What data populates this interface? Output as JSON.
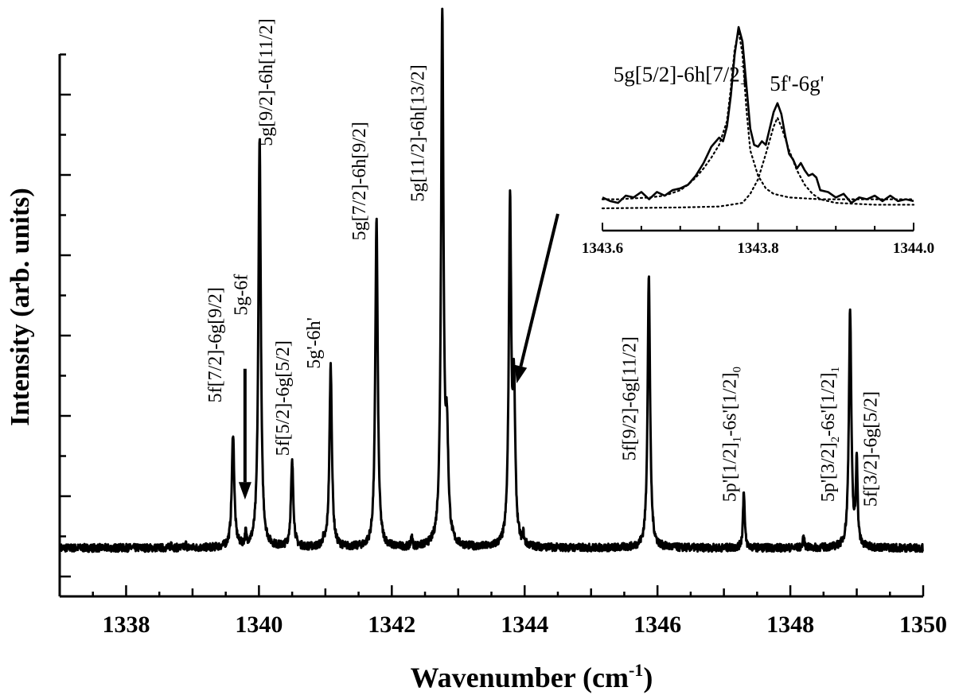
{
  "chart_data": {
    "type": "line",
    "xlabel": "Wavenumber (cm",
    "xlabel_sup": "-1",
    "xlabel_close": ")",
    "ylabel": "Intensity (arb. units)",
    "xlim": [
      1337,
      1350
    ],
    "ylim": [
      -0.5,
      10.7
    ],
    "xticks": [
      {
        "value": 1338,
        "label": "1338"
      },
      {
        "value": 1340,
        "label": "1340"
      },
      {
        "value": 1342,
        "label": "1342"
      },
      {
        "value": 1344,
        "label": "1344"
      },
      {
        "value": 1346,
        "label": "1346"
      },
      {
        "value": 1348,
        "label": "1348"
      },
      {
        "value": 1350,
        "label": "1350"
      }
    ],
    "grid": false,
    "baseline": 0.5,
    "peaks": [
      {
        "x": 1338.68,
        "height": 0.12,
        "width": 0.01
      },
      {
        "x": 1338.9,
        "height": 0.08,
        "width": 0.01
      },
      {
        "x": 1339.61,
        "height": 2.35,
        "width": 0.022
      },
      {
        "x": 1339.8,
        "height": 0.25,
        "width": 0.012
      },
      {
        "x": 1340.01,
        "height": 8.45,
        "width": 0.022
      },
      {
        "x": 1340.5,
        "height": 1.75,
        "width": 0.022
      },
      {
        "x": 1340.97,
        "height": 0.1,
        "width": 0.015
      },
      {
        "x": 1341.08,
        "height": 3.75,
        "width": 0.022
      },
      {
        "x": 1341.77,
        "height": 6.8,
        "width": 0.022
      },
      {
        "x": 1342.3,
        "height": 0.25,
        "width": 0.01
      },
      {
        "x": 1342.76,
        "height": 10.95,
        "width": 0.022
      },
      {
        "x": 1342.83,
        "height": 2.0,
        "width": 0.025
      },
      {
        "x": 1343.78,
        "height": 7.0,
        "width": 0.022
      },
      {
        "x": 1343.84,
        "height": 3.0,
        "width": 0.022
      },
      {
        "x": 1343.98,
        "height": 0.2,
        "width": 0.01
      },
      {
        "x": 1345.87,
        "height": 5.6,
        "width": 0.022
      },
      {
        "x": 1347.3,
        "height": 1.2,
        "width": 0.015
      },
      {
        "x": 1348.2,
        "height": 0.2,
        "width": 0.015
      },
      {
        "x": 1348.9,
        "height": 4.9,
        "width": 0.022
      },
      {
        "x": 1349.0,
        "height": 1.8,
        "width": 0.015
      }
    ],
    "labels": [
      {
        "x": 1339.43,
        "y": 3.5,
        "text": "5f[7/2]-6g[9/2]"
      },
      {
        "x": 1339.82,
        "y": 5.3,
        "text": "5g-6f"
      },
      {
        "x": 1340.2,
        "y": 8.8,
        "text": "5g[9/2]-6h[11/2]"
      },
      {
        "x": 1340.45,
        "y": 2.4,
        "text": "5f[5/2]-6g[5/2]"
      },
      {
        "x": 1340.92,
        "y": 4.2,
        "text": "5g'-6h'"
      },
      {
        "x": 1341.6,
        "y": 6.85,
        "text": "5g[7/2]-6h[9/2]"
      },
      {
        "x": 1342.48,
        "y": 7.65,
        "text": "5g[11/2]-6h[13/2]"
      },
      {
        "x": 1345.67,
        "y": 2.3,
        "text": "5f[9/2]-6g[11/2]"
      },
      {
        "x": 1347.18,
        "y": 1.45,
        "text": "5p'[1/2]",
        "sub1": "1",
        "mid": "-6s'[1/2]",
        "sub2": "0"
      },
      {
        "x": 1348.66,
        "y": 1.45,
        "text": "5p'[3/2]",
        "sub1": "2",
        "mid": "-6s'[1/2]",
        "sub2": "1"
      },
      {
        "x": 1349.3,
        "y": 1.35,
        "text": "5f[3/2]-6g[5/2]"
      }
    ],
    "arrows": [
      {
        "from": [
          1339.79,
          4.2
        ],
        "to": [
          1339.79,
          1.5
        ]
      },
      {
        "from": [
          1344.5,
          7.4
        ],
        "to": [
          1343.88,
          3.9
        ]
      }
    ],
    "inset": {
      "xlim": [
        1343.6,
        1344.0
      ],
      "xticks": [
        {
          "value": 1343.6,
          "label": "1343.6"
        },
        {
          "value": 1343.8,
          "label": "1343.8"
        },
        {
          "value": 1344.0,
          "label": "1344.0"
        }
      ],
      "series": [
        {
          "style": "solid",
          "points": [
            [
              1343.6,
              0.06
            ],
            [
              1343.61,
              0.04
            ],
            [
              1343.62,
              0.03
            ],
            [
              1343.63,
              0.07
            ],
            [
              1343.64,
              0.06
            ],
            [
              1343.65,
              0.09
            ],
            [
              1343.66,
              0.05
            ],
            [
              1343.67,
              0.09
            ],
            [
              1343.68,
              0.07
            ],
            [
              1343.69,
              0.1
            ],
            [
              1343.7,
              0.11
            ],
            [
              1343.71,
              0.13
            ],
            [
              1343.72,
              0.18
            ],
            [
              1343.73,
              0.25
            ],
            [
              1343.74,
              0.34
            ],
            [
              1343.75,
              0.39
            ],
            [
              1343.755,
              0.37
            ],
            [
              1343.76,
              0.45
            ],
            [
              1343.765,
              0.62
            ],
            [
              1343.77,
              0.85
            ],
            [
              1343.775,
              1.0
            ],
            [
              1343.78,
              0.92
            ],
            [
              1343.785,
              0.68
            ],
            [
              1343.79,
              0.44
            ],
            [
              1343.795,
              0.35
            ],
            [
              1343.8,
              0.34
            ],
            [
              1343.805,
              0.37
            ],
            [
              1343.81,
              0.35
            ],
            [
              1343.815,
              0.44
            ],
            [
              1343.82,
              0.53
            ],
            [
              1343.825,
              0.58
            ],
            [
              1343.83,
              0.52
            ],
            [
              1343.835,
              0.4
            ],
            [
              1343.84,
              0.3
            ],
            [
              1343.845,
              0.27
            ],
            [
              1343.85,
              0.22
            ],
            [
              1343.855,
              0.25
            ],
            [
              1343.86,
              0.21
            ],
            [
              1343.865,
              0.18
            ],
            [
              1343.87,
              0.19
            ],
            [
              1343.875,
              0.17
            ],
            [
              1343.88,
              0.1
            ],
            [
              1343.89,
              0.09
            ],
            [
              1343.9,
              0.06
            ],
            [
              1343.91,
              0.08
            ],
            [
              1343.92,
              0.03
            ],
            [
              1343.93,
              0.06
            ],
            [
              1343.94,
              0.05
            ],
            [
              1343.95,
              0.07
            ],
            [
              1343.96,
              0.04
            ],
            [
              1343.97,
              0.07
            ],
            [
              1343.98,
              0.04
            ],
            [
              1343.99,
              0.05
            ],
            [
              1344.0,
              0.04
            ]
          ]
        },
        {
          "style": "dotted",
          "points": [
            [
              1343.6,
              0.05
            ],
            [
              1343.62,
              0.05
            ],
            [
              1343.64,
              0.055
            ],
            [
              1343.66,
              0.06
            ],
            [
              1343.68,
              0.07
            ],
            [
              1343.7,
              0.1
            ],
            [
              1343.71,
              0.13
            ],
            [
              1343.72,
              0.17
            ],
            [
              1343.73,
              0.22
            ],
            [
              1343.74,
              0.28
            ],
            [
              1343.75,
              0.35
            ],
            [
              1343.76,
              0.48
            ],
            [
              1343.765,
              0.66
            ],
            [
              1343.77,
              0.88
            ],
            [
              1343.775,
              0.98
            ],
            [
              1343.78,
              0.85
            ],
            [
              1343.785,
              0.55
            ],
            [
              1343.79,
              0.32
            ],
            [
              1343.8,
              0.18
            ],
            [
              1343.81,
              0.11
            ],
            [
              1343.82,
              0.08
            ],
            [
              1343.84,
              0.06
            ],
            [
              1343.88,
              0.05
            ],
            [
              1343.94,
              0.05
            ],
            [
              1344.0,
              0.05
            ]
          ]
        },
        {
          "style": "dotted",
          "points": [
            [
              1343.6,
              0.0
            ],
            [
              1343.7,
              0.005
            ],
            [
              1343.75,
              0.01
            ],
            [
              1343.78,
              0.03
            ],
            [
              1343.79,
              0.08
            ],
            [
              1343.8,
              0.16
            ],
            [
              1343.81,
              0.3
            ],
            [
              1343.82,
              0.45
            ],
            [
              1343.825,
              0.5
            ],
            [
              1343.83,
              0.45
            ],
            [
              1343.84,
              0.32
            ],
            [
              1343.85,
              0.21
            ],
            [
              1343.86,
              0.13
            ],
            [
              1343.87,
              0.08
            ],
            [
              1343.88,
              0.05
            ],
            [
              1343.9,
              0.03
            ],
            [
              1343.95,
              0.02
            ],
            [
              1344.0,
              0.02
            ]
          ]
        }
      ],
      "labels": [
        {
          "x": 1343.7,
          "y": 0.7,
          "text": "5g[5/2]-6h[7/2]"
        },
        {
          "x": 1343.85,
          "y": 0.65,
          "text": "5f'-6g'"
        }
      ]
    }
  }
}
